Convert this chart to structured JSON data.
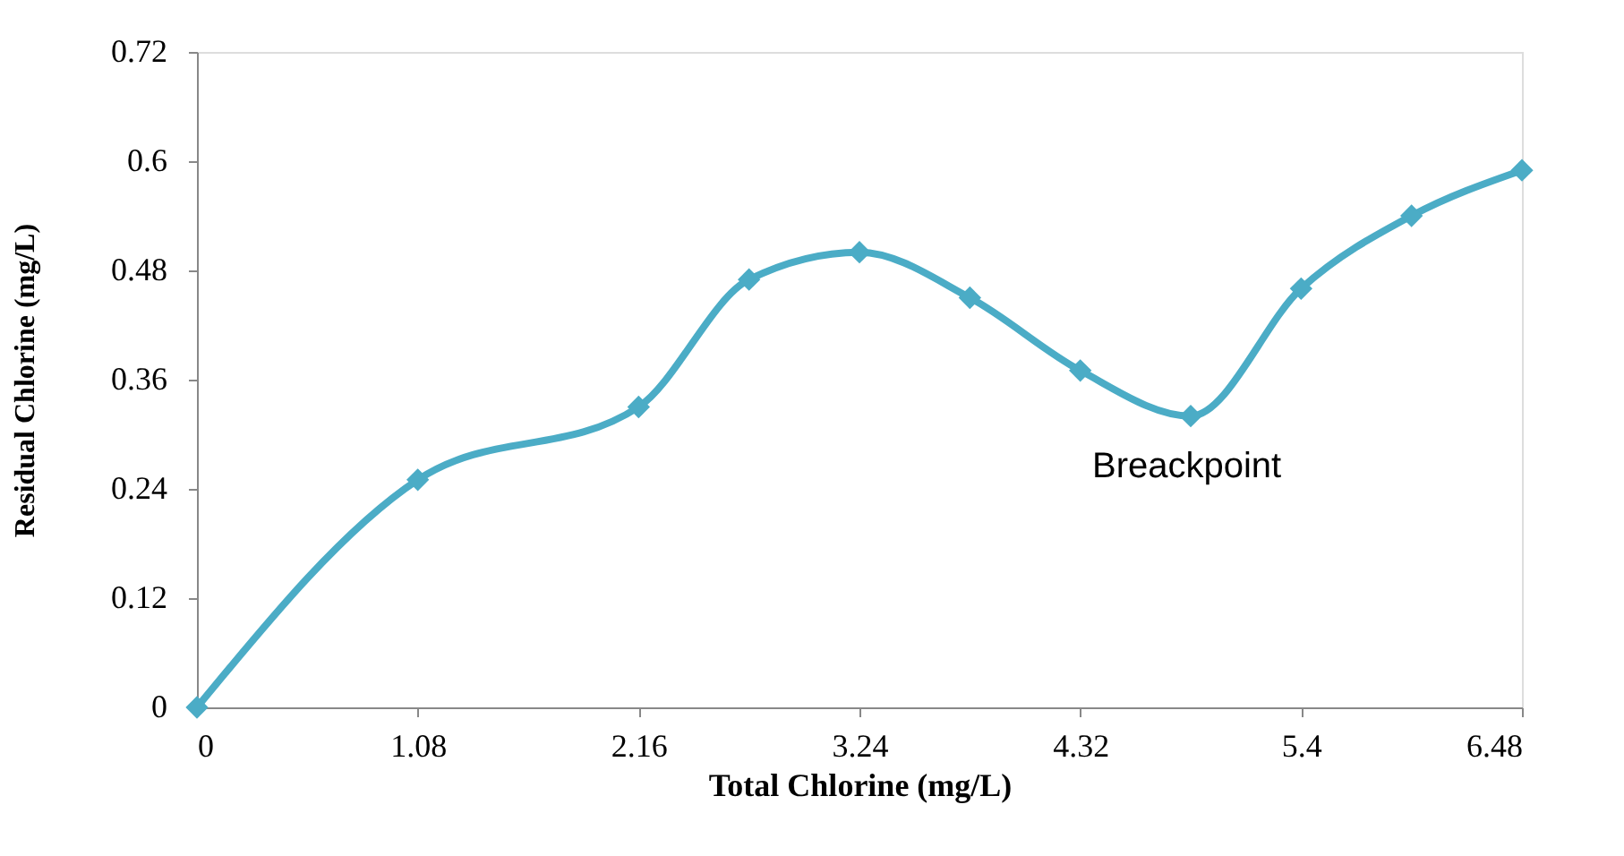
{
  "chart_data": {
    "type": "line",
    "xlabel": "Total Chlorine (mg/L)",
    "ylabel": "Residual Chlorine (mg/L)",
    "x": [
      0,
      1.08,
      2.16,
      2.7,
      3.24,
      3.78,
      4.32,
      4.86,
      5.4,
      5.94,
      6.48
    ],
    "series": [
      {
        "color": "#4bacc6",
        "values": [
          0,
          0.25,
          0.33,
          0.47,
          0.5,
          0.45,
          0.37,
          0.32,
          0.46,
          0.54,
          0.59
        ]
      }
    ],
    "xlim": [
      0,
      6.48
    ],
    "xticks": [
      0,
      1.08,
      2.16,
      3.24,
      4.32,
      5.4,
      6.48
    ],
    "ylim": [
      0,
      0.72
    ],
    "yticks": [
      0,
      0.12,
      0.24,
      0.36,
      0.48,
      0.6,
      0.72
    ],
    "marker": "diamond",
    "grid": false,
    "annotations": [
      {
        "text": "Breackpoint",
        "x": 4.86,
        "y": 0.32
      }
    ]
  }
}
